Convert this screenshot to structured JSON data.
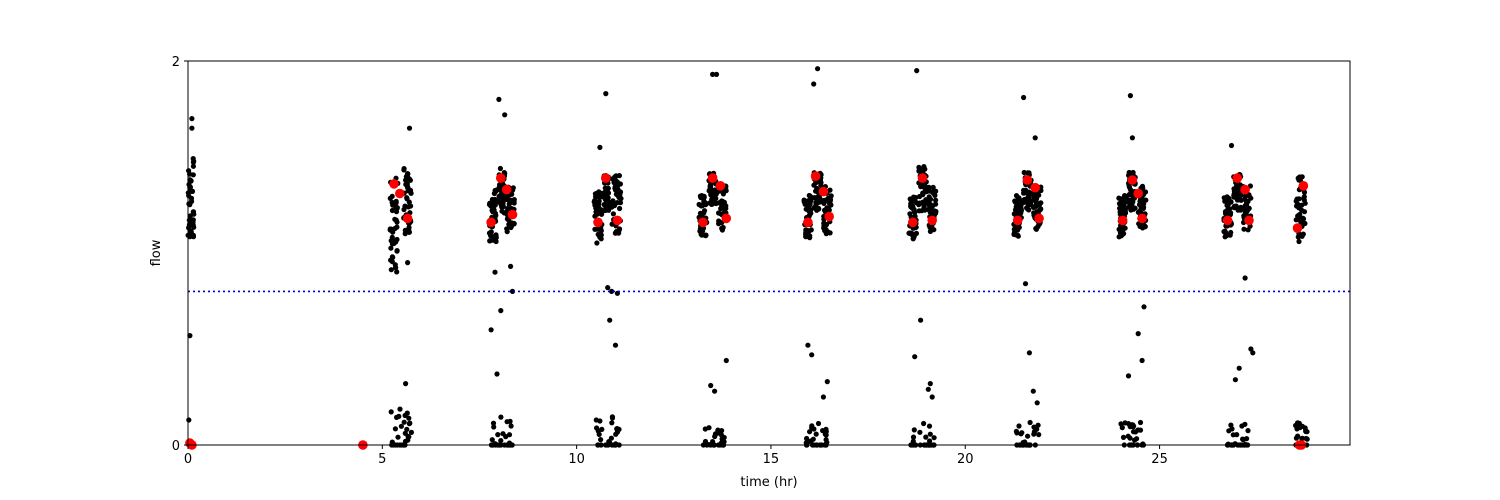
{
  "chart_data": {
    "type": "scatter",
    "xlabel": "time (hr)",
    "ylabel": "flow",
    "xlim": [
      0,
      29.9
    ],
    "ylim": [
      0,
      2
    ],
    "xticks": [
      0,
      5,
      10,
      15,
      20,
      25
    ],
    "yticks": [
      0,
      2
    ],
    "grid": false,
    "threshold_line": {
      "y": 0.8,
      "color": "#0000cc",
      "style": "dotted"
    },
    "colors": {
      "raw": "#000000",
      "highlight": "#ff0000",
      "axes": "#000000"
    },
    "raw_clusters": [
      {
        "x": [
          0.0,
          0.15
        ],
        "y": [
          1.07,
          1.5
        ]
      },
      {
        "x": [
          5.2,
          5.4
        ],
        "y": [
          0.9,
          1.4
        ]
      },
      {
        "x": [
          5.55,
          5.75
        ],
        "y": [
          1.1,
          1.45
        ]
      },
      {
        "x": [
          7.75,
          7.95
        ],
        "y": [
          1.05,
          1.33
        ]
      },
      {
        "x": [
          8.0,
          8.15
        ],
        "y": [
          1.2,
          1.45
        ]
      },
      {
        "x": [
          8.2,
          8.4
        ],
        "y": [
          1.1,
          1.35
        ]
      },
      {
        "x": [
          10.45,
          10.65
        ],
        "y": [
          1.05,
          1.33
        ]
      },
      {
        "x": [
          10.7,
          10.85
        ],
        "y": [
          1.22,
          1.42
        ]
      },
      {
        "x": [
          10.9,
          11.15
        ],
        "y": [
          1.1,
          1.42
        ]
      },
      {
        "x": [
          13.15,
          13.35
        ],
        "y": [
          1.08,
          1.3
        ]
      },
      {
        "x": [
          13.4,
          13.6
        ],
        "y": [
          1.25,
          1.42
        ]
      },
      {
        "x": [
          13.65,
          13.85
        ],
        "y": [
          1.12,
          1.35
        ]
      },
      {
        "x": [
          15.85,
          16.05
        ],
        "y": [
          1.08,
          1.3
        ]
      },
      {
        "x": [
          16.1,
          16.3
        ],
        "y": [
          1.22,
          1.42
        ]
      },
      {
        "x": [
          16.35,
          16.55
        ],
        "y": [
          1.1,
          1.35
        ]
      },
      {
        "x": [
          18.55,
          18.75
        ],
        "y": [
          1.07,
          1.3
        ]
      },
      {
        "x": [
          18.8,
          19.0
        ],
        "y": [
          1.22,
          1.45
        ]
      },
      {
        "x": [
          19.05,
          19.25
        ],
        "y": [
          1.1,
          1.35
        ]
      },
      {
        "x": [
          21.25,
          21.45
        ],
        "y": [
          1.08,
          1.3
        ]
      },
      {
        "x": [
          21.5,
          21.7
        ],
        "y": [
          1.22,
          1.42
        ]
      },
      {
        "x": [
          21.75,
          21.95
        ],
        "y": [
          1.12,
          1.35
        ]
      },
      {
        "x": [
          23.95,
          24.15
        ],
        "y": [
          1.08,
          1.3
        ]
      },
      {
        "x": [
          24.2,
          24.4
        ],
        "y": [
          1.22,
          1.42
        ]
      },
      {
        "x": [
          24.45,
          24.65
        ],
        "y": [
          1.12,
          1.35
        ]
      },
      {
        "x": [
          26.65,
          26.85
        ],
        "y": [
          1.08,
          1.3
        ]
      },
      {
        "x": [
          26.9,
          27.1
        ],
        "y": [
          1.22,
          1.42
        ]
      },
      {
        "x": [
          27.15,
          27.35
        ],
        "y": [
          1.12,
          1.35
        ]
      },
      {
        "x": [
          28.5,
          28.75
        ],
        "y": [
          1.05,
          1.4
        ]
      }
    ],
    "raw_low_clusters": [
      {
        "x": [
          5.2,
          5.75
        ],
        "y": [
          0.0,
          0.2
        ]
      },
      {
        "x": [
          7.8,
          8.4
        ],
        "y": [
          0.0,
          0.15
        ]
      },
      {
        "x": [
          10.5,
          11.1
        ],
        "y": [
          0.0,
          0.15
        ]
      },
      {
        "x": [
          13.2,
          13.8
        ],
        "y": [
          0.0,
          0.12
        ]
      },
      {
        "x": [
          15.9,
          16.5
        ],
        "y": [
          0.0,
          0.12
        ]
      },
      {
        "x": [
          18.6,
          19.2
        ],
        "y": [
          0.0,
          0.12
        ]
      },
      {
        "x": [
          21.3,
          21.9
        ],
        "y": [
          0.0,
          0.12
        ]
      },
      {
        "x": [
          24.0,
          24.6
        ],
        "y": [
          0.0,
          0.12
        ]
      },
      {
        "x": [
          26.7,
          27.3
        ],
        "y": [
          0.0,
          0.12
        ]
      },
      {
        "x": [
          28.5,
          28.8
        ],
        "y": [
          0.0,
          0.12
        ]
      }
    ],
    "raw_outliers": {
      "x": [
        0.1,
        0.05,
        0.02,
        0.1,
        5.3,
        5.65,
        5.7,
        5.6,
        7.8,
        7.9,
        8.0,
        8.05,
        8.15,
        8.3,
        8.35,
        7.95,
        10.6,
        10.75,
        10.8,
        10.9,
        11.0,
        11.05,
        10.85,
        13.5,
        13.6,
        13.85,
        13.45,
        13.55,
        16.1,
        16.2,
        16.05,
        16.35,
        16.45,
        15.95,
        18.75,
        18.85,
        19.1,
        18.7,
        19.05,
        19.15,
        21.5,
        21.65,
        21.75,
        21.8,
        21.55,
        21.85,
        24.25,
        24.3,
        24.45,
        24.55,
        24.6,
        24.2,
        26.85,
        26.95,
        27.05,
        27.2,
        27.35,
        27.4
      ],
      "y": [
        1.7,
        0.57,
        0.13,
        1.65,
        1.05,
        0.95,
        1.65,
        0.32,
        0.6,
        0.9,
        1.8,
        0.7,
        1.72,
        0.93,
        0.8,
        0.37,
        1.55,
        1.83,
        0.82,
        0.8,
        0.52,
        0.79,
        0.65,
        1.93,
        1.93,
        0.44,
        0.31,
        0.28,
        1.88,
        1.96,
        0.47,
        0.25,
        0.33,
        0.52,
        1.95,
        0.65,
        0.32,
        0.46,
        0.29,
        0.25,
        1.81,
        0.48,
        0.28,
        1.6,
        0.84,
        0.22,
        1.82,
        1.6,
        0.58,
        0.44,
        0.72,
        0.36,
        1.56,
        0.34,
        0.4,
        0.87,
        0.5,
        0.48
      ]
    },
    "highlight_points": {
      "x": [
        0.05,
        0.1,
        4.5,
        5.3,
        5.45,
        5.65,
        7.8,
        8.05,
        8.2,
        8.35,
        10.55,
        10.75,
        11.05,
        13.25,
        13.5,
        13.7,
        13.85,
        15.95,
        16.15,
        16.35,
        16.5,
        18.65,
        18.9,
        19.15,
        21.35,
        21.6,
        21.8,
        21.9,
        24.05,
        24.3,
        24.45,
        24.55,
        26.75,
        27.0,
        27.2,
        27.3,
        28.55,
        28.7,
        28.6,
        28.65
      ],
      "y": [
        0.01,
        0.0,
        0.0,
        1.36,
        1.31,
        1.18,
        1.16,
        1.39,
        1.33,
        1.2,
        1.16,
        1.39,
        1.17,
        1.16,
        1.39,
        1.35,
        1.18,
        1.16,
        1.4,
        1.32,
        1.19,
        1.16,
        1.39,
        1.17,
        1.17,
        1.38,
        1.34,
        1.18,
        1.17,
        1.38,
        1.31,
        1.18,
        1.17,
        1.39,
        1.33,
        1.17,
        1.13,
        1.35,
        0.0,
        0.0
      ]
    }
  }
}
